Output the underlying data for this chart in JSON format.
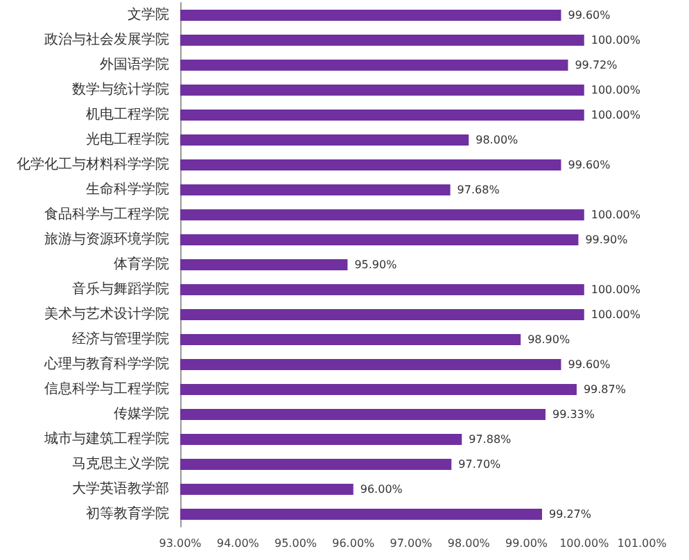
{
  "chart_data": {
    "type": "bar",
    "orientation": "horizontal",
    "categories": [
      "文学院",
      "政治与社会发展学院",
      "外国语学院",
      "数学与统计学院",
      "机电工程学院",
      "光电工程学院",
      "化学化工与材料科学学院",
      "生命科学学院",
      "食品科学与工程学院",
      "旅游与资源环境学院",
      "体育学院",
      "音乐与舞蹈学院",
      "美术与艺术设计学院",
      "经济与管理学院",
      "心理与教育科学学院",
      "信息科学与工程学院",
      "传媒学院",
      "城市与建筑工程学院",
      "马克思主义学院",
      "大学英语教学部",
      "初等教育学院"
    ],
    "values": [
      99.6,
      100.0,
      99.72,
      100.0,
      100.0,
      98.0,
      99.6,
      97.68,
      100.0,
      99.9,
      95.9,
      100.0,
      100.0,
      98.9,
      99.6,
      99.87,
      99.33,
      97.88,
      97.7,
      96.0,
      99.27
    ],
    "value_labels": [
      "99.60%",
      "100.00%",
      "99.72%",
      "100.00%",
      "100.00%",
      "98.00%",
      "99.60%",
      "97.68%",
      "100.00%",
      "99.90%",
      "95.90%",
      "100.00%",
      "100.00%",
      "98.90%",
      "99.60%",
      "99.87%",
      "99.33%",
      "97.88%",
      "97.70%",
      "96.00%",
      "99.27%"
    ],
    "color": "#7030a0",
    "xlim": [
      93,
      101
    ],
    "xticks": [
      {
        "value": 93,
        "label": "93.00%"
      },
      {
        "value": 94,
        "label": "94.00%"
      },
      {
        "value": 95,
        "label": "95.00%"
      },
      {
        "value": 96,
        "label": "96.00%"
      },
      {
        "value": 97,
        "label": "97.00%"
      },
      {
        "value": 98,
        "label": "98.00%"
      },
      {
        "value": 99,
        "label": "99.00%"
      },
      {
        "value": 100,
        "label": "100.00%"
      },
      {
        "value": 101,
        "label": "101.00%"
      }
    ],
    "grid": false
  }
}
